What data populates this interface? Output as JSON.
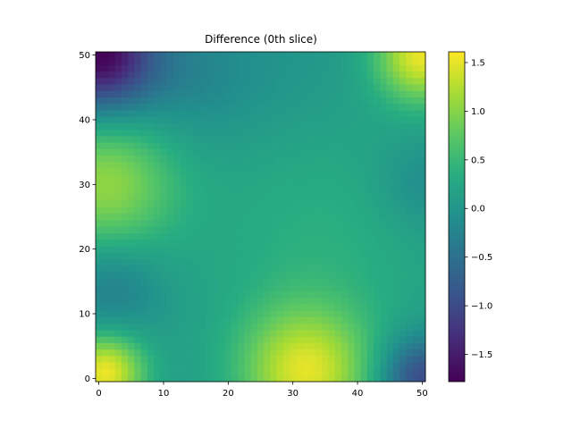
{
  "chart_data": {
    "type": "heatmap",
    "title": "Difference (0th slice)",
    "xlabel": "",
    "ylabel": "",
    "grid_size": 51,
    "xlim": [
      -0.5,
      50.5
    ],
    "ylim": [
      -0.5,
      50.5
    ],
    "origin": "lower",
    "grid": false,
    "x_ticks": [
      0,
      10,
      20,
      30,
      40,
      50
    ],
    "y_ticks": [
      0,
      10,
      20,
      30,
      40,
      50
    ],
    "colormap": "viridis",
    "vmin": -1.78,
    "vmax": 1.61,
    "colorbar_ticks": [
      "1.5",
      "1.0",
      "0.5",
      "0.0",
      "−0.5",
      "−1.0",
      "−1.5"
    ],
    "colorbar_tick_values": [
      1.5,
      1.0,
      0.5,
      0.0,
      -0.5,
      -1.0,
      -1.5
    ],
    "baseline_value": 0.1,
    "features": [
      {
        "x": 1,
        "y": 1,
        "sigma": 4.2,
        "amplitude": 1.45
      },
      {
        "x": 1,
        "y": 30,
        "sigma": 7.5,
        "amplitude": 0.95
      },
      {
        "x": 32,
        "y": 1,
        "sigma": 7.0,
        "amplitude": 1.3
      },
      {
        "x": 50,
        "y": 50,
        "sigma": 5.0,
        "amplitude": 1.4
      },
      {
        "x": 34,
        "y": 22,
        "sigma": 14.0,
        "amplitude": 0.28
      },
      {
        "x": 0,
        "y": 50,
        "sigma": 6.0,
        "amplitude": -1.85
      },
      {
        "x": 50,
        "y": 0,
        "sigma": 4.5,
        "amplitude": -1.15
      },
      {
        "x": 2,
        "y": 14,
        "sigma": 5.5,
        "amplitude": -0.45
      },
      {
        "x": 50,
        "y": 30,
        "sigma": 5.0,
        "amplitude": -0.3
      },
      {
        "x": 28,
        "y": 47,
        "sigma": 9.0,
        "amplitude": -0.12
      },
      {
        "x": 14,
        "y": 47,
        "sigma": 7.0,
        "amplitude": -0.3
      }
    ]
  }
}
